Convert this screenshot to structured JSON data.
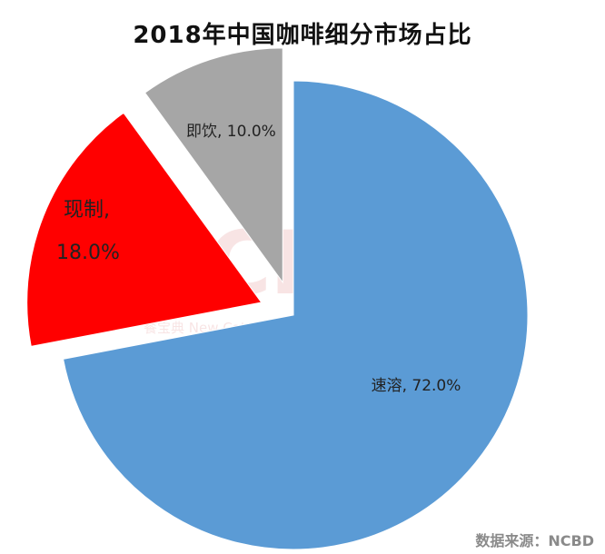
{
  "chart_data": {
    "type": "pie",
    "title": "2018年中国咖啡细分市场占比",
    "slices": [
      {
        "name": "速溶",
        "value": 72.0,
        "label": "速溶, 72.0%",
        "color": "#5b9bd5",
        "exploded": false
      },
      {
        "name": "现制",
        "value": 18.0,
        "label_line1": "现制,",
        "label_line2": "18.0%",
        "color": "#ff0000",
        "exploded": true
      },
      {
        "name": "即饮",
        "value": 10.0,
        "label": "即饮, 10.0%",
        "color": "#a6a6a6",
        "exploded": true
      }
    ]
  },
  "source": "数据来源：NCBD",
  "watermark": {
    "big": "NCBD",
    "small": "餐宝典 New Catering Big Data"
  }
}
